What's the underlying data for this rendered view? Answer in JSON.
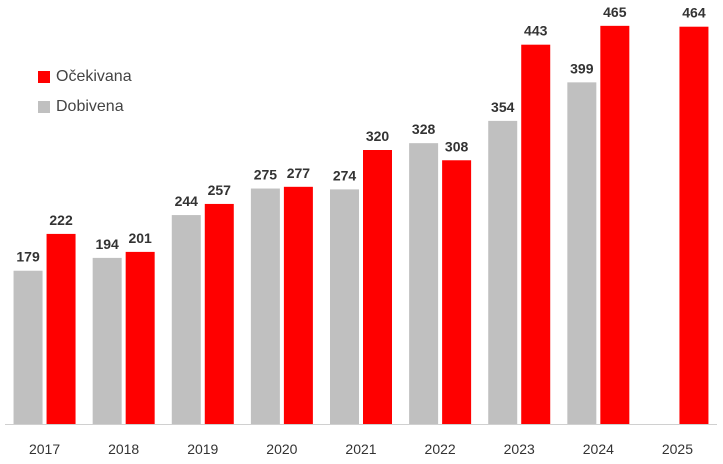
{
  "chart_data": {
    "type": "bar",
    "categories": [
      "2017",
      "2018",
      "2019",
      "2020",
      "2021",
      "2022",
      "2023",
      "2024",
      "2025"
    ],
    "series": [
      {
        "name": "Dobivena",
        "color": "#c0c0c0",
        "values": [
          179,
          194,
          244,
          275,
          274,
          328,
          354,
          399,
          null
        ]
      },
      {
        "name": "Očekivana",
        "color": "#ff0000",
        "values": [
          222,
          201,
          257,
          277,
          320,
          308,
          443,
          465,
          464
        ]
      }
    ],
    "ylim": [
      0,
      480
    ],
    "legend_position": "top-left",
    "grid": false
  },
  "legend": {
    "items": [
      {
        "label": "Očekivana",
        "color": "#ff0000"
      },
      {
        "label": "Dobivena",
        "color": "#c0c0c0"
      }
    ]
  }
}
